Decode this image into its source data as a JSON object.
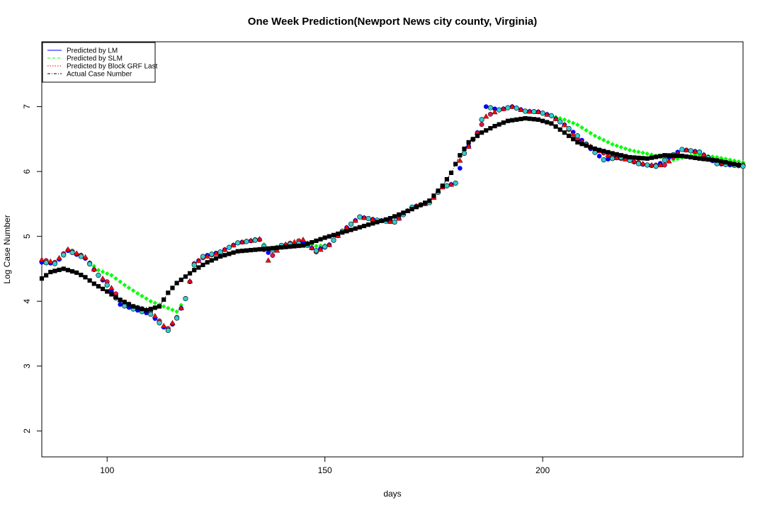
{
  "chart_data": {
    "type": "scatter",
    "title": "One Week Prediction(Newport News city county, Virginia)",
    "xlabel": "days",
    "ylabel": "Log Case Number",
    "xlim": [
      85,
      246
    ],
    "ylim": [
      1.6,
      8.0
    ],
    "x_ticks": [
      100,
      150,
      200
    ],
    "y_ticks": [
      2,
      3,
      4,
      5,
      6,
      7
    ],
    "grid": false,
    "legend_position": "top-left",
    "legend": [
      {
        "label": "Predicted by LM",
        "color": "#0000ff",
        "line": "solid"
      },
      {
        "label": "Predicted by SLM",
        "color": "#00ff00",
        "line": "dashed"
      },
      {
        "label": "Predicted by Block GRF Last",
        "color": "#ff0000",
        "line": "dotted"
      },
      {
        "label": "Actual Case Number",
        "color": "#000000",
        "line": "dashdot"
      }
    ],
    "keypoints": {
      "actual": [
        [
          85,
          4.35
        ],
        [
          87,
          4.45
        ],
        [
          90,
          4.5
        ],
        [
          93,
          4.44
        ],
        [
          95,
          4.37
        ],
        [
          97,
          4.27
        ],
        [
          100,
          4.15
        ],
        [
          103,
          4.02
        ],
        [
          106,
          3.92
        ],
        [
          109,
          3.86
        ],
        [
          112,
          3.92
        ],
        [
          114,
          4.13
        ],
        [
          116,
          4.28
        ],
        [
          118,
          4.38
        ],
        [
          120,
          4.48
        ],
        [
          123,
          4.6
        ],
        [
          126,
          4.69
        ],
        [
          130,
          4.77
        ],
        [
          135,
          4.8
        ],
        [
          140,
          4.83
        ],
        [
          145,
          4.86
        ],
        [
          150,
          4.98
        ],
        [
          155,
          5.08
        ],
        [
          160,
          5.18
        ],
        [
          165,
          5.28
        ],
        [
          170,
          5.42
        ],
        [
          174,
          5.55
        ],
        [
          177,
          5.78
        ],
        [
          179,
          5.98
        ],
        [
          181,
          6.25
        ],
        [
          183,
          6.45
        ],
        [
          186,
          6.6
        ],
        [
          189,
          6.7
        ],
        [
          192,
          6.78
        ],
        [
          196,
          6.82
        ],
        [
          199,
          6.8
        ],
        [
          202,
          6.74
        ],
        [
          205,
          6.6
        ],
        [
          208,
          6.45
        ],
        [
          212,
          6.35
        ],
        [
          216,
          6.28
        ],
        [
          220,
          6.22
        ],
        [
          224,
          6.2
        ],
        [
          228,
          6.25
        ],
        [
          232,
          6.24
        ],
        [
          236,
          6.2
        ],
        [
          240,
          6.17
        ],
        [
          245,
          6.1
        ]
      ],
      "slm": [
        [
          85,
          4.6
        ],
        [
          88,
          4.58
        ],
        [
          91,
          4.8
        ],
        [
          95,
          4.66
        ],
        [
          98,
          4.48
        ],
        [
          101,
          4.4
        ],
        [
          104,
          4.25
        ],
        [
          107,
          4.12
        ],
        [
          110,
          4.0
        ],
        [
          113,
          3.92
        ],
        [
          116,
          3.84
        ],
        [
          118,
          4.04
        ],
        [
          120,
          4.56
        ],
        [
          122,
          4.69
        ],
        [
          126,
          4.76
        ],
        [
          130,
          4.9
        ],
        [
          135,
          4.95
        ],
        [
          137,
          4.8
        ],
        [
          140,
          4.86
        ],
        [
          145,
          4.93
        ],
        [
          148,
          4.85
        ],
        [
          151,
          4.87
        ],
        [
          154,
          5.08
        ],
        [
          158,
          5.3
        ],
        [
          162,
          5.25
        ],
        [
          166,
          5.24
        ],
        [
          170,
          5.45
        ],
        [
          174,
          5.52
        ],
        [
          177,
          5.76
        ],
        [
          180,
          5.82
        ],
        [
          182,
          6.28
        ],
        [
          185,
          6.6
        ],
        [
          187,
          7.0
        ],
        [
          190,
          6.95
        ],
        [
          193,
          7.0
        ],
        [
          196,
          6.94
        ],
        [
          199,
          6.92
        ],
        [
          202,
          6.86
        ],
        [
          205,
          6.8
        ],
        [
          208,
          6.72
        ],
        [
          212,
          6.55
        ],
        [
          216,
          6.42
        ],
        [
          220,
          6.33
        ],
        [
          225,
          6.26
        ],
        [
          230,
          6.18
        ],
        [
          235,
          6.26
        ],
        [
          240,
          6.22
        ],
        [
          246,
          6.14
        ]
      ],
      "lm": [
        [
          85,
          4.6
        ],
        [
          88,
          4.58
        ],
        [
          91,
          4.78
        ],
        [
          95,
          4.66
        ],
        [
          98,
          4.4
        ],
        [
          100,
          4.25
        ],
        [
          103,
          3.95
        ],
        [
          106,
          3.88
        ],
        [
          110,
          3.8
        ],
        [
          113,
          3.6
        ],
        [
          114,
          3.55
        ],
        [
          116,
          3.74
        ],
        [
          118,
          4.04
        ],
        [
          120,
          4.56
        ],
        [
          122,
          4.69
        ],
        [
          126,
          4.76
        ],
        [
          130,
          4.9
        ],
        [
          135,
          4.95
        ],
        [
          137,
          4.75
        ],
        [
          140,
          4.86
        ],
        [
          145,
          4.9
        ],
        [
          148,
          4.78
        ],
        [
          151,
          4.87
        ],
        [
          154,
          5.08
        ],
        [
          158,
          5.3
        ],
        [
          162,
          5.25
        ],
        [
          166,
          5.22
        ],
        [
          170,
          5.45
        ],
        [
          174,
          5.52
        ],
        [
          177,
          5.76
        ],
        [
          180,
          5.82
        ],
        [
          182,
          6.28
        ],
        [
          185,
          6.6
        ],
        [
          187,
          7.0
        ],
        [
          190,
          6.95
        ],
        [
          193,
          7.0
        ],
        [
          196,
          6.93
        ],
        [
          199,
          6.92
        ],
        [
          202,
          6.86
        ],
        [
          205,
          6.72
        ],
        [
          208,
          6.55
        ],
        [
          211,
          6.35
        ],
        [
          214,
          6.18
        ],
        [
          218,
          6.22
        ],
        [
          222,
          6.12
        ],
        [
          226,
          6.08
        ],
        [
          229,
          6.22
        ],
        [
          232,
          6.34
        ],
        [
          236,
          6.3
        ],
        [
          240,
          6.12
        ],
        [
          246,
          6.08
        ]
      ],
      "grf": [
        [
          85,
          4.64
        ],
        [
          88,
          4.6
        ],
        [
          91,
          4.8
        ],
        [
          95,
          4.68
        ],
        [
          98,
          4.4
        ],
        [
          100,
          4.3
        ],
        [
          103,
          4.02
        ],
        [
          106,
          3.92
        ],
        [
          110,
          3.85
        ],
        [
          113,
          3.62
        ],
        [
          114,
          3.58
        ],
        [
          116,
          3.75
        ],
        [
          118,
          4.04
        ],
        [
          120,
          4.58
        ],
        [
          122,
          4.67
        ],
        [
          126,
          4.76
        ],
        [
          130,
          4.9
        ],
        [
          135,
          4.96
        ],
        [
          137,
          4.63
        ],
        [
          140,
          4.86
        ],
        [
          145,
          4.95
        ],
        [
          148,
          4.76
        ],
        [
          151,
          4.87
        ],
        [
          154,
          5.08
        ],
        [
          158,
          5.3
        ],
        [
          162,
          5.25
        ],
        [
          166,
          5.22
        ],
        [
          170,
          5.45
        ],
        [
          174,
          5.52
        ],
        [
          177,
          5.76
        ],
        [
          180,
          5.82
        ],
        [
          181,
          6.17
        ],
        [
          182,
          6.28
        ],
        [
          185,
          6.6
        ],
        [
          187,
          6.85
        ],
        [
          190,
          6.95
        ],
        [
          193,
          7.0
        ],
        [
          196,
          6.93
        ],
        [
          199,
          6.92
        ],
        [
          202,
          6.86
        ],
        [
          205,
          6.72
        ],
        [
          208,
          6.5
        ],
        [
          212,
          6.35
        ],
        [
          216,
          6.22
        ],
        [
          220,
          6.18
        ],
        [
          224,
          6.1
        ],
        [
          228,
          6.1
        ],
        [
          232,
          6.34
        ],
        [
          236,
          6.3
        ],
        [
          240,
          6.14
        ],
        [
          246,
          6.1
        ]
      ]
    }
  }
}
